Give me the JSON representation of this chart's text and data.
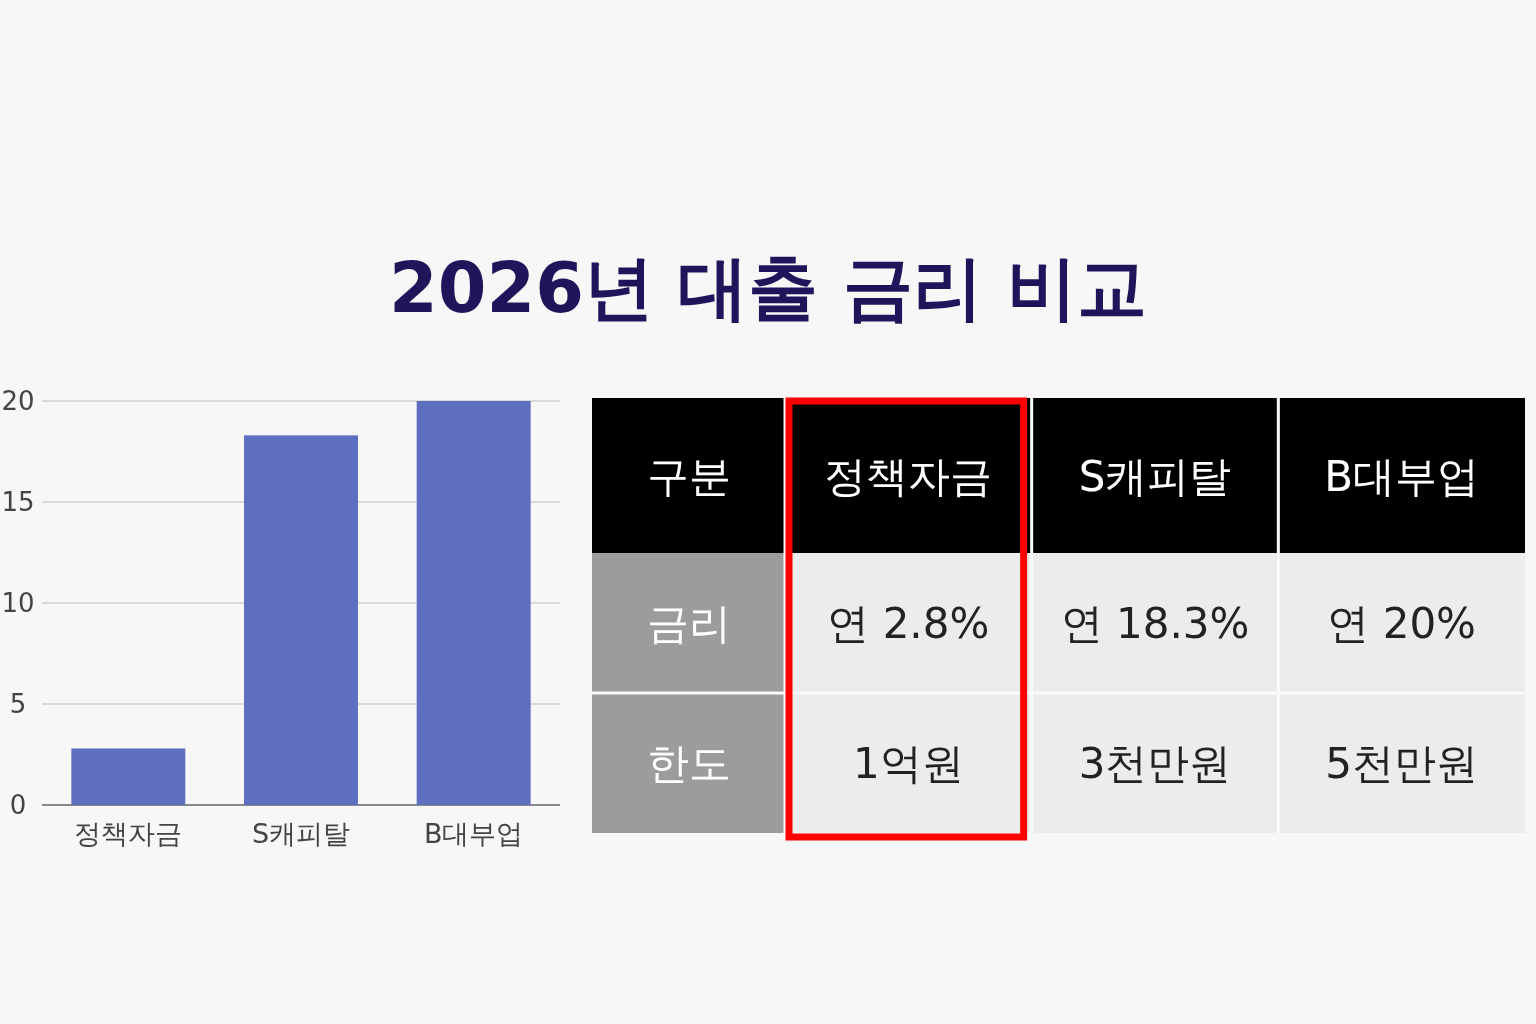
{
  "chart_data": [
    {
      "type": "bar",
      "title": "2026년 대출 금리 비교",
      "categories": [
        "정책자금",
        "S캐피탈",
        "B대부업"
      ],
      "values": [
        2.8,
        18.3,
        20
      ],
      "color": "#5f6fc0",
      "ylim": [
        0,
        20
      ],
      "yticks": [
        0,
        5,
        10,
        15,
        20
      ],
      "grid": "y"
    },
    {
      "type": "other",
      "categories": [
        "구분",
        "정책자금",
        "S캐피탈",
        "B대부업"
      ],
      "annotations": [
        "금리",
        "연 2.8%",
        "연 18.3%",
        "연 20%",
        "한도",
        "1억원",
        "3천만원",
        "5천만원"
      ]
    }
  ]
}
